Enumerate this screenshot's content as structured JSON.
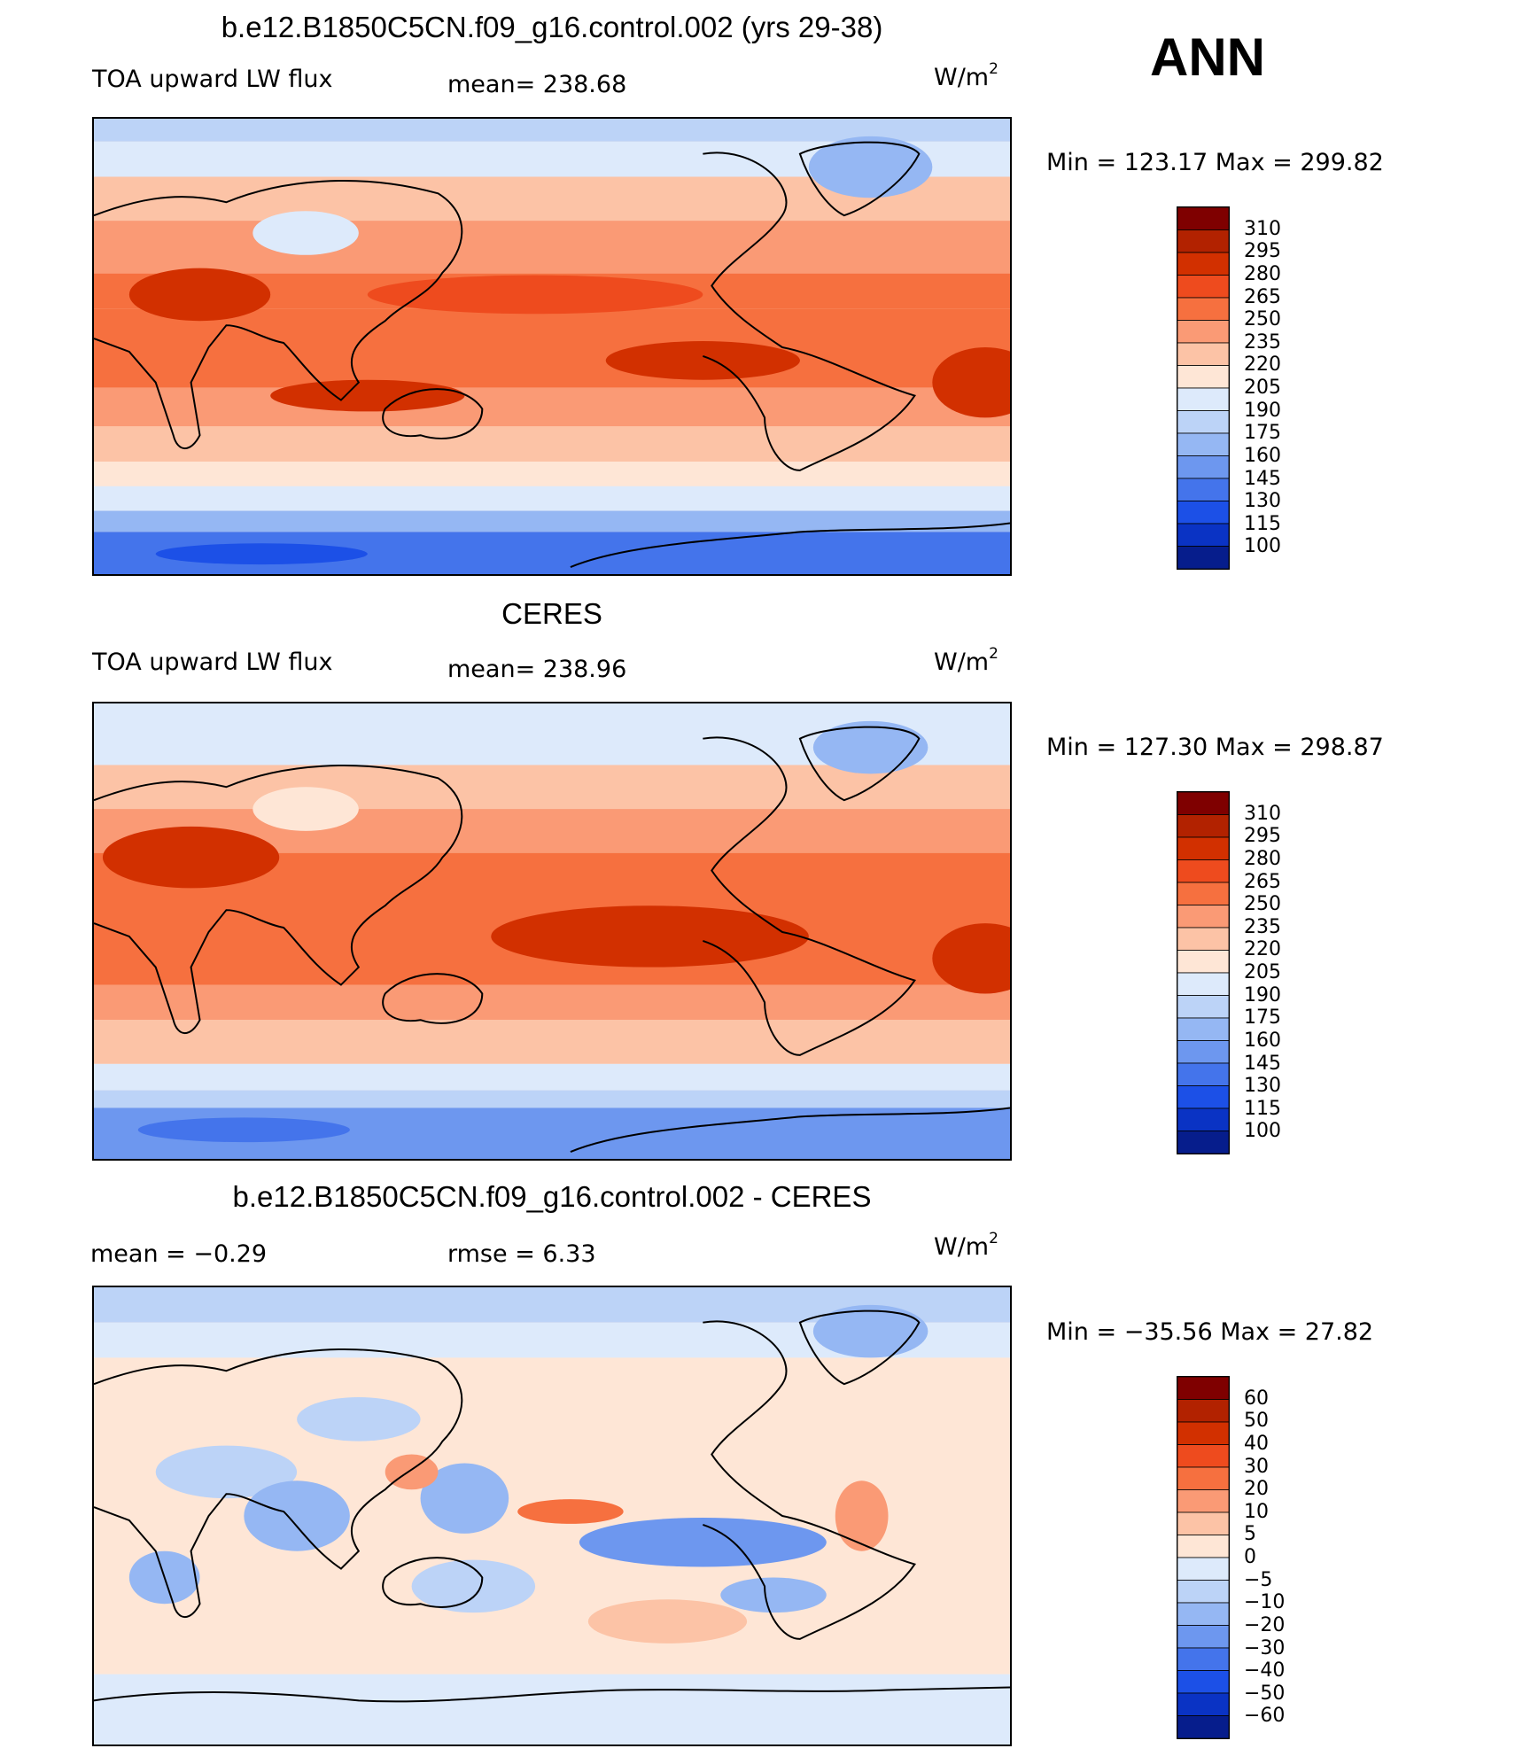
{
  "season": "ANN",
  "panels": [
    {
      "id": "model",
      "title": "b.e12.B1850C5CN.f09_g16.control.002 (yrs 29-38)",
      "left_label": "TOA upward LW flux",
      "center_label": "mean= 238.68",
      "units": "W/m",
      "units_sup": "2",
      "minmax": "Min = 123.17 Max = 299.82",
      "colorbar": {
        "levels": [
          "310",
          "295",
          "280",
          "265",
          "250",
          "235",
          "220",
          "205",
          "190",
          "175",
          "160",
          "145",
          "130",
          "115",
          "100"
        ],
        "colors": [
          "#7f0000",
          "#b22200",
          "#d23000",
          "#ee4b1e",
          "#f6703f",
          "#fa9a75",
          "#fcc3a6",
          "#fee6d6",
          "#ddeafb",
          "#bcd3f7",
          "#95b7f3",
          "#6d97ef",
          "#4474eb",
          "#1c50e7",
          "#0a33c4",
          "#061d8c"
        ]
      }
    },
    {
      "id": "obs",
      "title": "CERES",
      "left_label": "TOA upward LW flux",
      "center_label": "mean= 238.96",
      "units": "W/m",
      "units_sup": "2",
      "minmax": "Min = 127.30 Max = 298.87",
      "colorbar": {
        "levels": [
          "310",
          "295",
          "280",
          "265",
          "250",
          "235",
          "220",
          "205",
          "190",
          "175",
          "160",
          "145",
          "130",
          "115",
          "100"
        ],
        "colors": [
          "#7f0000",
          "#b22200",
          "#d23000",
          "#ee4b1e",
          "#f6703f",
          "#fa9a75",
          "#fcc3a6",
          "#fee6d6",
          "#ddeafb",
          "#bcd3f7",
          "#95b7f3",
          "#6d97ef",
          "#4474eb",
          "#1c50e7",
          "#0a33c4",
          "#061d8c"
        ]
      }
    },
    {
      "id": "diff",
      "title": "b.e12.B1850C5CN.f09_g16.control.002 - CERES",
      "left_label": "mean =   −0.29",
      "center_label": "rmse =    6.33",
      "units": "W/m",
      "units_sup": "2",
      "minmax": "Min = −35.56 Max =   27.82",
      "colorbar": {
        "levels": [
          "60",
          "50",
          "40",
          "30",
          "20",
          "10",
          "5",
          "0",
          "−5",
          "−10",
          "−20",
          "−30",
          "−40",
          "−50",
          "−60"
        ],
        "colors": [
          "#7f0000",
          "#b22200",
          "#d23000",
          "#ee4b1e",
          "#f6703f",
          "#fa9a75",
          "#fcc3a6",
          "#fee6d6",
          "#ddeafb",
          "#bcd3f7",
          "#95b7f3",
          "#6d97ef",
          "#4474eb",
          "#1c50e7",
          "#0a33c4",
          "#061d8c"
        ]
      }
    }
  ]
}
